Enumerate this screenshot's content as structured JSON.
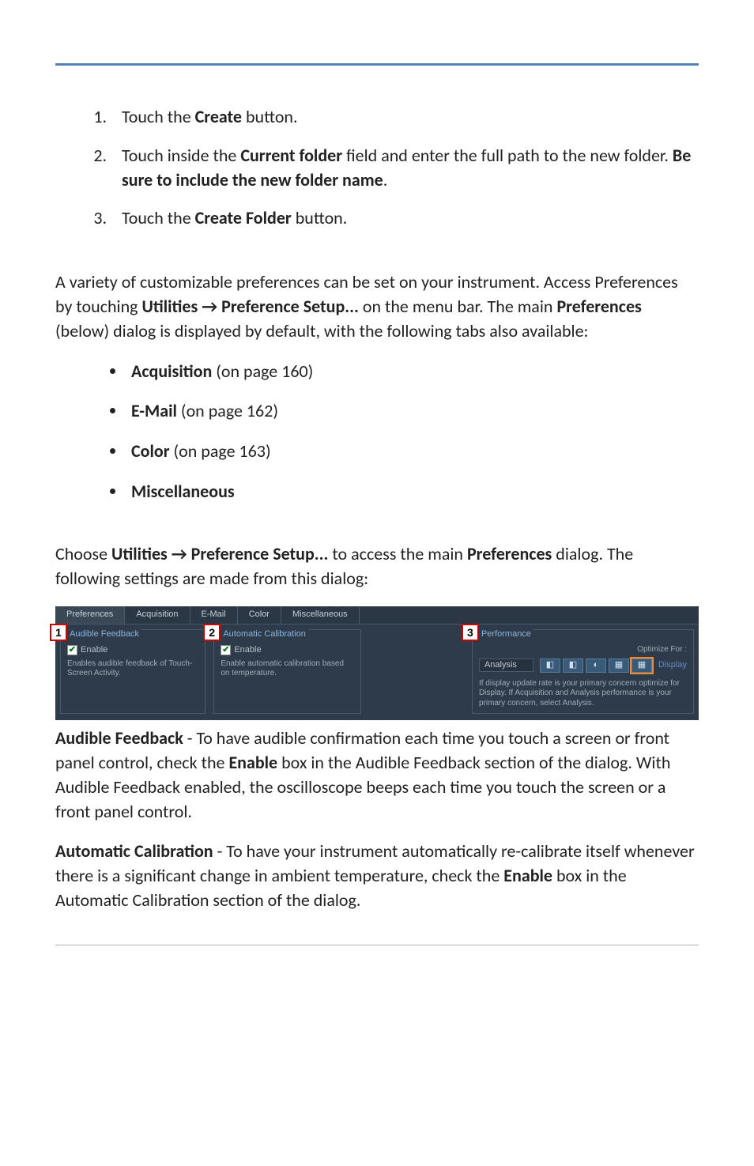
{
  "steps": [
    {
      "pre": "Touch the ",
      "bold": "Create",
      "post": " button."
    },
    {
      "segments": [
        {
          "t": "Touch inside the "
        },
        {
          "t": "Current folder",
          "b": true
        },
        {
          "t": " field and enter the full path to the new folder. "
        },
        {
          "t": "Be sure to include the new folder name",
          "b": true
        },
        {
          "t": "."
        }
      ]
    },
    {
      "pre": "Touch the ",
      "bold": "Create Folder",
      "post": " button."
    }
  ],
  "intro": {
    "segments": [
      {
        "t": "A variety of customizable preferences can be set on your instrument. Access Preferences by touching "
      },
      {
        "t": "Utilities → Preference Setup...",
        "b": true
      },
      {
        "t": " on the menu bar. The main "
      },
      {
        "t": "Preferences",
        "b": true
      },
      {
        "t": " (below) dialog is displayed by default, with the following tabs also available:"
      }
    ]
  },
  "tabs_list": [
    {
      "label": "Acquisition",
      "ref": " (on page 160)"
    },
    {
      "label": "E-Mail",
      "ref": " (on page 162)"
    },
    {
      "label": "Color",
      "ref": " (on page 163)"
    },
    {
      "label": "Miscellaneous",
      "ref": ""
    }
  ],
  "choose": {
    "segments": [
      {
        "t": "Choose  "
      },
      {
        "t": "Utilities → Preference Setup...",
        "b": true
      },
      {
        "t": " to access the main "
      },
      {
        "t": "Preferences",
        "b": true
      },
      {
        "t": " dialog. The following settings are made from this dialog:"
      }
    ]
  },
  "panel": {
    "tabs": [
      "Preferences",
      "Acquisition",
      "E-Mail",
      "Color",
      "Miscellaneous"
    ],
    "active_tab_index": 0,
    "callouts": {
      "audible": "1",
      "calibration": "2",
      "performance": "3"
    },
    "audible": {
      "title": "Audible Feedback",
      "enable": "Enable",
      "desc": "Enables audible feedback of Touch-Screen Activity."
    },
    "calibration": {
      "title": "Automatic Calibration",
      "enable": "Enable",
      "desc": "Enable automatic calibration based on temperature."
    },
    "performance": {
      "title": "Performance",
      "optimize_for": "Optimize For :",
      "mode_label": "Analysis",
      "display_label": "Display",
      "desc": "If display update rate is your primary concern optimize for Display. If Acquisition and Analysis performance is your primary concern, select Analysis."
    }
  },
  "audible_para": {
    "segments": [
      {
        "t": "Audible Feedback",
        "b": true
      },
      {
        "t": " - To have audible confirmation each time you touch a screen or front panel control, check the "
      },
      {
        "t": "Enable",
        "b": true
      },
      {
        "t": " box in the Audible Feedback section of the dialog. With Audible Feedback enabled, the oscilloscope beeps each time you touch the screen or a front panel control."
      }
    ]
  },
  "calib_para": {
    "segments": [
      {
        "t": "Automatic Calibration",
        "b": true
      },
      {
        "t": " - To have your instrument automatically re-calibrate itself whenever there is a significant change in ambient temperature, check the "
      },
      {
        "t": "Enable",
        "b": true
      },
      {
        "t": " box in the Automatic Calibration section of the dialog."
      }
    ]
  },
  "colors": {
    "rule": "#5680b8",
    "panel_bg": "#2e3b4a",
    "panel_border": "#4a5a6c",
    "panel_text": "#b8c0c8",
    "group_title": "#8ab4e0",
    "callout_border": "#d00000"
  }
}
